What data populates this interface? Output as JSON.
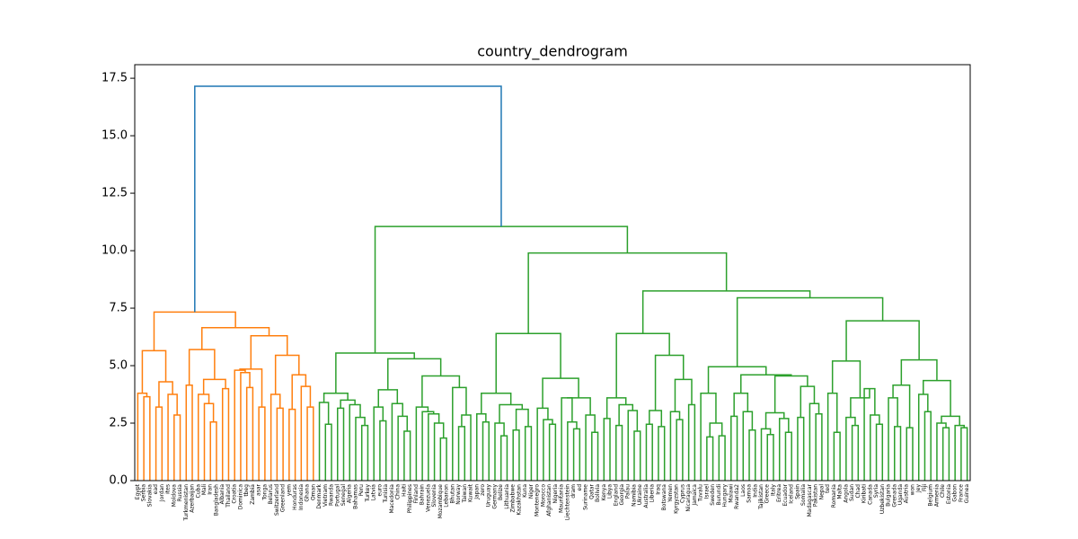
{
  "chart_data": {
    "type": "dendrogram",
    "title": "country_dendrogram",
    "ylim": [
      0,
      18.09
    ],
    "yticks": [
      {
        "value": 0,
        "label": "0.0"
      },
      {
        "value": 2.5,
        "label": "2.5"
      },
      {
        "value": 5,
        "label": "5.0"
      },
      {
        "value": 7.5,
        "label": "7.5"
      },
      {
        "value": 10,
        "label": "10.0"
      },
      {
        "value": 12.5,
        "label": "12.5"
      },
      {
        "value": 15,
        "label": "15.0"
      },
      {
        "value": 17.5,
        "label": "17.5"
      }
    ],
    "above_threshold_color": "#1f77b4",
    "cluster_colors": [
      "#ff7f0e",
      "#2ca02c"
    ],
    "tree": [
      17.15,
      [
        7.33,
        [
          5.65,
          [
            3.8,
            "Egypt",
            [
              3.65,
              "Serbia",
              "Slovakia"
            ]
          ],
          [
            4.3,
            [
              3.2,
              "ead",
              "Jordan"
            ],
            [
              3.75,
              "ites",
              [
                2.85,
                "Moldova",
                "Russia"
              ]
            ]
          ]
        ],
        [
          6.65,
          [
            5.7,
            [
              4.15,
              "Turkmenistan",
              "Azerbaijan"
            ],
            [
              4.4,
              [
                3.75,
                "Cuba",
                [
                  3.35,
                  "Mali",
                  [
                    2.55,
                    "Iran",
                    "Bangladesh"
                  ]
                ]
              ],
              [
                4.0,
                "Albania",
                "Thailand"
              ]
            ]
          ],
          [
            6.3,
            [
              4.85,
              [
                4.8,
                "Croatia",
                [
                  4.7,
                  "Dominica",
                  [
                    4.05,
                    "tbeg",
                    "Zambia"
                  ]
                ]
              ],
              [
                3.2,
                "asar",
                "Tonga"
              ]
            ],
            [
              5.45,
              [
                3.75,
                "Belarus",
                [
                  3.15,
                  "Switzerland",
                  "Greenland"
                ]
              ],
              [
                4.6,
                [
                  3.1,
                  "yem",
                  "Honduras"
                ],
                [
                  4.1,
                  "Indonesia",
                  [
                    3.2,
                    "Ghana",
                    "Oman"
                  ]
                ]
              ]
            ]
          ]
        ]
      ],
      [
        11.05,
        [
          5.55,
          [
            3.8,
            [
              3.4,
              "Denmark",
              [
                2.45,
                "Vietnam",
                "Rwanda"
              ]
            ],
            [
              3.5,
              [
                3.15,
                "Portugal",
                "Senegal"
              ],
              [
                3.3,
                "Algeria",
                [
                  2.75,
                  "Bahamas",
                  [
                    2.4,
                    "Peru",
                    "Turkey"
                  ]
                ]
              ]
            ]
          ],
          [
            5.3,
            [
              3.95,
              [
                3.2,
                "Latvia",
                [
                  2.6,
                  "euro",
                  "Tunisia"
                ]
              ],
              [
                3.35,
                "Macedonia",
                [
                  2.8,
                  "China",
                  [
                    2.15,
                    "Haiti",
                    "Philippines"
                  ]
                ]
              ]
            ],
            [
              4.55,
              [
                3.2,
                "Finland",
                [
                  3.0,
                  "Bahrain",
                  [
                    2.9,
                    "Venezuela",
                    [
                      2.5,
                      "Slovenia",
                      [
                        1.85,
                        "Mozambique",
                        "Lebanon"
                      ]
                    ]
                  ]
                ]
              ],
              [
                4.05,
                "Bhutan",
                [
                  2.85,
                  [
                    2.35,
                    "Norway",
                    "Taiwan"
                  ],
                  "Kuwait"
                ]
              ]
            ]
          ]
        ],
        [
          9.9,
          [
            6.4,
            [
              3.8,
              [
                2.9,
                "Japan",
                [
                  2.55,
                  "zero",
                  "Uruguay"
                ]
              ],
              [
                3.3,
                [
                  2.5,
                  "Germany",
                  [
                    1.95,
                    "Belize",
                    "Lithuania"
                  ]
                ],
                [
                  3.1,
                  [
                    2.2,
                    "Zimbabwe",
                    "Kazakhstan"
                  ],
                  [
                    2.35,
                    "Kuna",
                    "Niger"
                  ]
                ]
              ]
            ],
            [
              4.45,
              [
                3.15,
                "Montenegro",
                [
                  2.65,
                  "Morocco",
                  [
                    2.45,
                    "Afghanistan",
                    "Nigeria"
                  ]
                ]
              ],
              [
                3.6,
                [
                  3.6,
                  "Mauritania",
                  [
                    2.55,
                    "Liechtenstein",
                    [
                      2.25,
                      "dram",
                      "ed"
                    ]
                  ]
                ],
                [
                  2.85,
                  "Suriname",
                  [
                    2.1,
                    "Qatar",
                    "Bolivia"
                  ]
                ]
              ]
            ]
          ],
          [
            8.25,
            [
              6.4,
              [
                3.6,
                [
                  2.7,
                  "Kenya",
                  "Libya"
                ],
                [
                  3.3,
                  [
                    2.4,
                    "England",
                    "Georgia"
                  ],
                  [
                    3.05,
                    "Palau",
                    [
                      2.15,
                      "Namibia",
                      "Ukraine"
                    ]
                  ]
                ]
              ],
              [
                5.45,
                [
                  3.05,
                  [
                    2.45,
                    "Australia",
                    "Liberia"
                  ],
                  [
                    2.35,
                    "Iraq",
                    "Botswana"
                  ]
                ],
                [
                  4.4,
                  [
                    3.0,
                    "Yemen",
                    [
                      2.65,
                      "Kyrgyzstan",
                      "Cyprus"
                    ]
                  ],
                  [
                    3.3,
                    "Nicaragua",
                    "Jamaica"
                  ]
                ]
              ]
            ],
            [
              7.95,
              [
                4.95,
                [
                  3.8,
                  "Tuvalu",
                  [
                    2.5,
                    [
                      1.9,
                      "Israel",
                      "Sweden"
                    ],
                    [
                      1.95,
                      "Burundi",
                      "Hungary"
                    ]
                  ]
                ],
                [
                  4.6,
                  [
                    3.8,
                    [
                      2.8,
                      "Malawi",
                      "Rwanda2"
                    ],
                    [
                      3.0,
                      "Laos",
                      [
                        2.2,
                        "Samoa",
                        "India"
                      ]
                    ]
                  ],
                  [
                    4.55,
                    [
                      2.95,
                      [
                        2.25,
                        "Tajikistan",
                        [
                          2.0,
                          "Greece",
                          "Italy"
                        ]
                      ],
                      [
                        2.7,
                        "Eritrea",
                        [
                          2.1,
                          "Ecuador",
                          "Iceland"
                        ]
                      ]
                    ],
                    [
                      4.1,
                      [
                        2.75,
                        "Spain",
                        "Somalia"
                      ],
                      [
                        3.35,
                        "Madagascar",
                        [
                          2.9,
                          "Pakistan",
                          "Nepal"
                        ]
                      ]
                    ]
                  ]
                ]
              ],
              [
                6.95,
                [
                  5.2,
                  [
                    3.8,
                    "ted",
                    [
                      2.1,
                      "Romania",
                      "Malta"
                    ]
                  ],
                  [
                    3.6,
                    [
                      2.75,
                      "Angola",
                      [
                        2.4,
                        "Sudan",
                        "Chad"
                      ]
                    ],
                    [
                      4.0,
                      "Kiribati",
                      [
                        2.85,
                        "Canada",
                        [
                          2.45,
                          "Syria",
                          "Uzbekistan"
                        ]
                      ]
                    ]
                  ]
                ],
                [
                  5.25,
                  [
                    4.15,
                    [
                      3.6,
                      "Bulgaria",
                      [
                        2.35,
                        "Grenada",
                        "Uganda"
                      ]
                    ],
                    [
                      2.3,
                      "Austria",
                      "won"
                    ]
                  ],
                  [
                    4.35,
                    [
                      3.75,
                      "Jey",
                      [
                        3.0,
                        "Fiji",
                        "Belgium"
                      ]
                    ],
                    [
                      2.8,
                      [
                        2.5,
                        "Armenia",
                        [
                          2.3,
                          "Chile",
                          "Estonia"
                        ]
                      ],
                      [
                        2.4,
                        "Gabon",
                        [
                          2.3,
                          "France",
                          "Guinea"
                        ]
                      ]
                    ]
                  ]
                ]
              ]
            ]
          ]
        ]
      ]
    ]
  }
}
